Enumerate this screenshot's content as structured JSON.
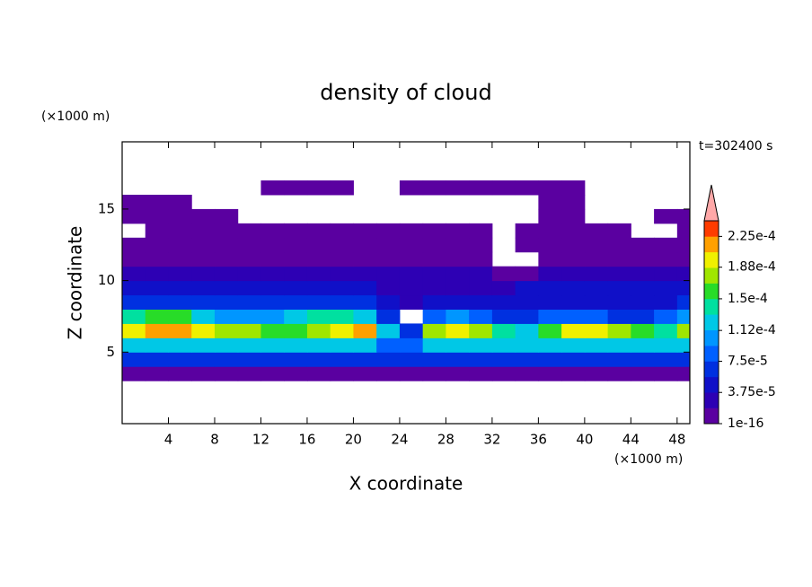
{
  "chart_data": {
    "type": "contour",
    "title": "density of cloud",
    "x_label": "X coordinate",
    "y_label": "Z coordinate",
    "x_unit": "(×1000 m)",
    "y_unit": "(×1000 m)",
    "annotation": "t=302400 s",
    "xlim": [
      0,
      49.1
    ],
    "ylim": [
      0,
      19.7
    ],
    "xticks": [
      4,
      8,
      12,
      16,
      20,
      24,
      28,
      32,
      36,
      40,
      44,
      48
    ],
    "yticks": [
      5,
      10,
      15
    ],
    "x": [
      1,
      3,
      5,
      7,
      9,
      11,
      13,
      15,
      17,
      19,
      21,
      23,
      25,
      27,
      29,
      31,
      33,
      35,
      37,
      39,
      41,
      43,
      45,
      47,
      49
    ],
    "y": [
      3.5,
      4.5,
      5.5,
      6.5,
      7.5,
      8.5,
      9.5,
      10.5,
      11.5,
      12.5,
      13.5,
      14.5,
      15.5,
      16.5
    ],
    "z": [
      [
        8e-06,
        8e-06,
        8e-06,
        8e-06,
        8e-06,
        8e-06,
        8e-06,
        8e-06,
        8e-06,
        8e-06,
        8e-06,
        8e-06,
        8e-06,
        8e-06,
        8e-06,
        8e-06,
        8e-06,
        8e-06,
        8e-06,
        8e-06,
        8e-06,
        8e-06,
        8e-06,
        8e-06,
        8e-06
      ],
      [
        6.5e-05,
        6.5e-05,
        6.5e-05,
        6.5e-05,
        6.5e-05,
        6.5e-05,
        6.5e-05,
        6.5e-05,
        6.5e-05,
        6.5e-05,
        6.5e-05,
        6.5e-05,
        6.5e-05,
        6.5e-05,
        6.5e-05,
        6.5e-05,
        6.5e-05,
        6.5e-05,
        6.5e-05,
        6.5e-05,
        6.5e-05,
        6.5e-05,
        6.5e-05,
        6.5e-05,
        6.5e-05
      ],
      [
        0.00012,
        0.00012,
        0.00012,
        0.00012,
        0.00012,
        0.00012,
        0.00012,
        0.00012,
        0.00012,
        0.00012,
        0.00012,
        8.5e-05,
        8.5e-05,
        0.00012,
        0.00012,
        0.00012,
        0.00012,
        0.00012,
        0.00012,
        0.00012,
        0.00012,
        0.00012,
        0.00012,
        0.00012,
        0.00012
      ],
      [
        0.000195,
        0.000215,
        0.000215,
        0.000195,
        0.000175,
        0.000175,
        0.00016,
        0.00016,
        0.000175,
        0.000195,
        0.000215,
        0.00012,
        6.5e-05,
        0.000175,
        0.000195,
        0.000175,
        0.00014,
        0.00012,
        0.00016,
        0.000195,
        0.000195,
        0.000175,
        0.00016,
        0.00014,
        0.000175
      ],
      [
        0.00014,
        0.00016,
        0.00016,
        0.00012,
        0.000105,
        0.000105,
        0.000105,
        0.00012,
        0.00014,
        0.00014,
        0.00012,
        6.5e-05,
        null,
        8.5e-05,
        0.000105,
        8.5e-05,
        6.5e-05,
        6.5e-05,
        8.5e-05,
        8.5e-05,
        8.5e-05,
        6.5e-05,
        6.5e-05,
        8.5e-05,
        0.000105
      ],
      [
        6.5e-05,
        6.5e-05,
        6.5e-05,
        6.5e-05,
        6.5e-05,
        6.5e-05,
        6.5e-05,
        6.5e-05,
        6.5e-05,
        6.5e-05,
        6.5e-05,
        4.5e-05,
        2.5e-05,
        4.5e-05,
        4.5e-05,
        4.5e-05,
        4.5e-05,
        4.5e-05,
        4.5e-05,
        4.5e-05,
        4.5e-05,
        4.5e-05,
        4.5e-05,
        4.5e-05,
        6.5e-05
      ],
      [
        4.5e-05,
        4.5e-05,
        4.5e-05,
        4.5e-05,
        4.5e-05,
        4.5e-05,
        4.5e-05,
        4.5e-05,
        4.5e-05,
        4.5e-05,
        4.5e-05,
        2.5e-05,
        2.5e-05,
        2.5e-05,
        2.5e-05,
        2.5e-05,
        2.5e-05,
        4.5e-05,
        4.5e-05,
        4.5e-05,
        4.5e-05,
        4.5e-05,
        4.5e-05,
        4.5e-05,
        4.5e-05
      ],
      [
        2.5e-05,
        2.5e-05,
        2.5e-05,
        2.5e-05,
        2.5e-05,
        2.5e-05,
        2.5e-05,
        2.5e-05,
        2.5e-05,
        2.5e-05,
        2.5e-05,
        2.5e-05,
        2.5e-05,
        2.5e-05,
        2.5e-05,
        2.5e-05,
        8e-06,
        8e-06,
        2.5e-05,
        2.5e-05,
        2.5e-05,
        2.5e-05,
        2.5e-05,
        2.5e-05,
        2.5e-05
      ],
      [
        8e-06,
        8e-06,
        8e-06,
        8e-06,
        8e-06,
        8e-06,
        8e-06,
        8e-06,
        8e-06,
        8e-06,
        8e-06,
        8e-06,
        8e-06,
        8e-06,
        8e-06,
        8e-06,
        null,
        null,
        8e-06,
        8e-06,
        8e-06,
        8e-06,
        8e-06,
        8e-06,
        8e-06
      ],
      [
        8e-06,
        8e-06,
        8e-06,
        8e-06,
        8e-06,
        8e-06,
        8e-06,
        8e-06,
        8e-06,
        8e-06,
        8e-06,
        8e-06,
        8e-06,
        8e-06,
        8e-06,
        8e-06,
        null,
        8e-06,
        8e-06,
        8e-06,
        8e-06,
        8e-06,
        8e-06,
        8e-06,
        8e-06
      ],
      [
        null,
        8e-06,
        8e-06,
        8e-06,
        8e-06,
        8e-06,
        8e-06,
        8e-06,
        8e-06,
        8e-06,
        8e-06,
        8e-06,
        8e-06,
        8e-06,
        8e-06,
        8e-06,
        null,
        8e-06,
        8e-06,
        8e-06,
        8e-06,
        8e-06,
        null,
        null,
        8e-06
      ],
      [
        8e-06,
        8e-06,
        8e-06,
        8e-06,
        8e-06,
        null,
        null,
        null,
        null,
        null,
        null,
        null,
        null,
        null,
        null,
        null,
        null,
        null,
        8e-06,
        8e-06,
        null,
        null,
        null,
        8e-06,
        8e-06
      ],
      [
        8e-06,
        8e-06,
        8e-06,
        null,
        null,
        null,
        null,
        null,
        null,
        null,
        null,
        null,
        null,
        null,
        null,
        null,
        null,
        null,
        8e-06,
        8e-06,
        null,
        null,
        null,
        null,
        null
      ],
      [
        null,
        null,
        null,
        null,
        null,
        null,
        8e-06,
        8e-06,
        8e-06,
        8e-06,
        null,
        null,
        8e-06,
        8e-06,
        8e-06,
        8e-06,
        8e-06,
        8e-06,
        8e-06,
        8e-06,
        null,
        null,
        null,
        null,
        null
      ]
    ],
    "clim": [
      1e-16,
      0.00024375
    ],
    "colors": [
      "#5a00a0",
      "#2d00b4",
      "#1010c8",
      "#0030e0",
      "#0060ff",
      "#0096ff",
      "#00c8e6",
      "#00e0a0",
      "#28dc28",
      "#a0e600",
      "#f0f000",
      "#ffa000",
      "#ff3c00"
    ],
    "over_color": "#ffa8a8",
    "cticks": [
      1e-16,
      {
        "value": 3.75e-05,
        "label": "3.75e-5"
      },
      {
        "value": 7.5e-05,
        "label": "7.5e-5"
      },
      {
        "value": 0.000112,
        "label": "1.12e-4"
      },
      {
        "value": 0.00015,
        "label": "1.5e-4"
      },
      {
        "value": 0.000188,
        "label": "1.88e-4"
      },
      {
        "value": 0.000225,
        "label": "2.25e-4"
      }
    ]
  }
}
